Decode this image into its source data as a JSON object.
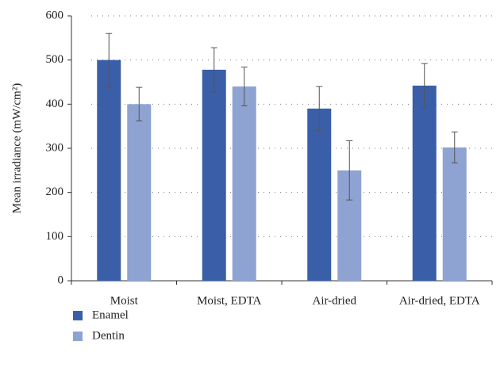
{
  "chart_data": {
    "type": "bar",
    "y_label": "Mean irradiance (mW/cm²)",
    "categories": [
      "Moist",
      "Moist, EDTA",
      "Air-dried",
      "Air-dried, EDTA"
    ],
    "series": [
      {
        "name": "Enamel",
        "color": "#3a5fa8",
        "values": [
          500,
          478,
          390,
          442
        ],
        "errors": [
          60,
          50,
          50,
          50
        ]
      },
      {
        "name": "Dentin",
        "color": "#8fa3d2",
        "values": [
          400,
          440,
          250,
          302
        ],
        "errors": [
          38,
          44,
          67,
          35
        ]
      }
    ],
    "ylim": [
      0,
      600
    ],
    "yticks": [
      0,
      100,
      200,
      300,
      400,
      500,
      600
    ],
    "grid": true,
    "legend": "bottom-left"
  }
}
